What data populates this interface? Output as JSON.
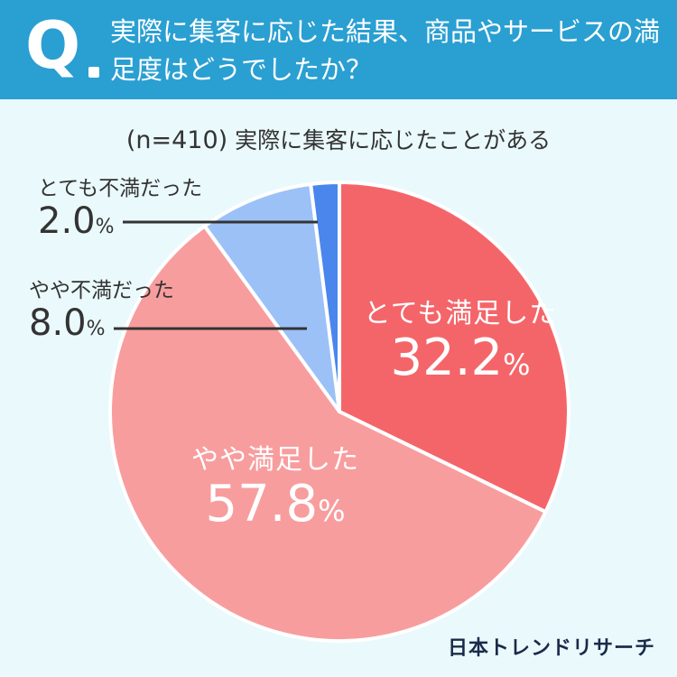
{
  "header": {
    "q_mark": "Q",
    "question": "実際に集客に応じた結果、商品やサービスの満足度はどうでしたか？"
  },
  "subtitle": {
    "n": "(n=410)",
    "text": "実際に集客に応じたことがある"
  },
  "chart_data": {
    "type": "pie",
    "categories": [
      "とても満足した",
      "やや満足した",
      "やや不満だった",
      "とても不満だった"
    ],
    "values": [
      32.2,
      57.8,
      8.0,
      2.0
    ],
    "unit": "%",
    "colors": [
      "#f4656a",
      "#f89d9e",
      "#9cc1f7",
      "#4a86ec"
    ],
    "labels": [
      {
        "cat": "とても満足した",
        "pct": "32.2",
        "unit": "%"
      },
      {
        "cat": "やや満足した",
        "pct": "57.8",
        "unit": "%"
      },
      {
        "cat": "やや不満だった",
        "pct": "8.0",
        "unit": "%"
      },
      {
        "cat": "とても不満だった",
        "pct": "2.0",
        "unit": "%"
      }
    ]
  },
  "brand": "日本トレンドリサーチ"
}
